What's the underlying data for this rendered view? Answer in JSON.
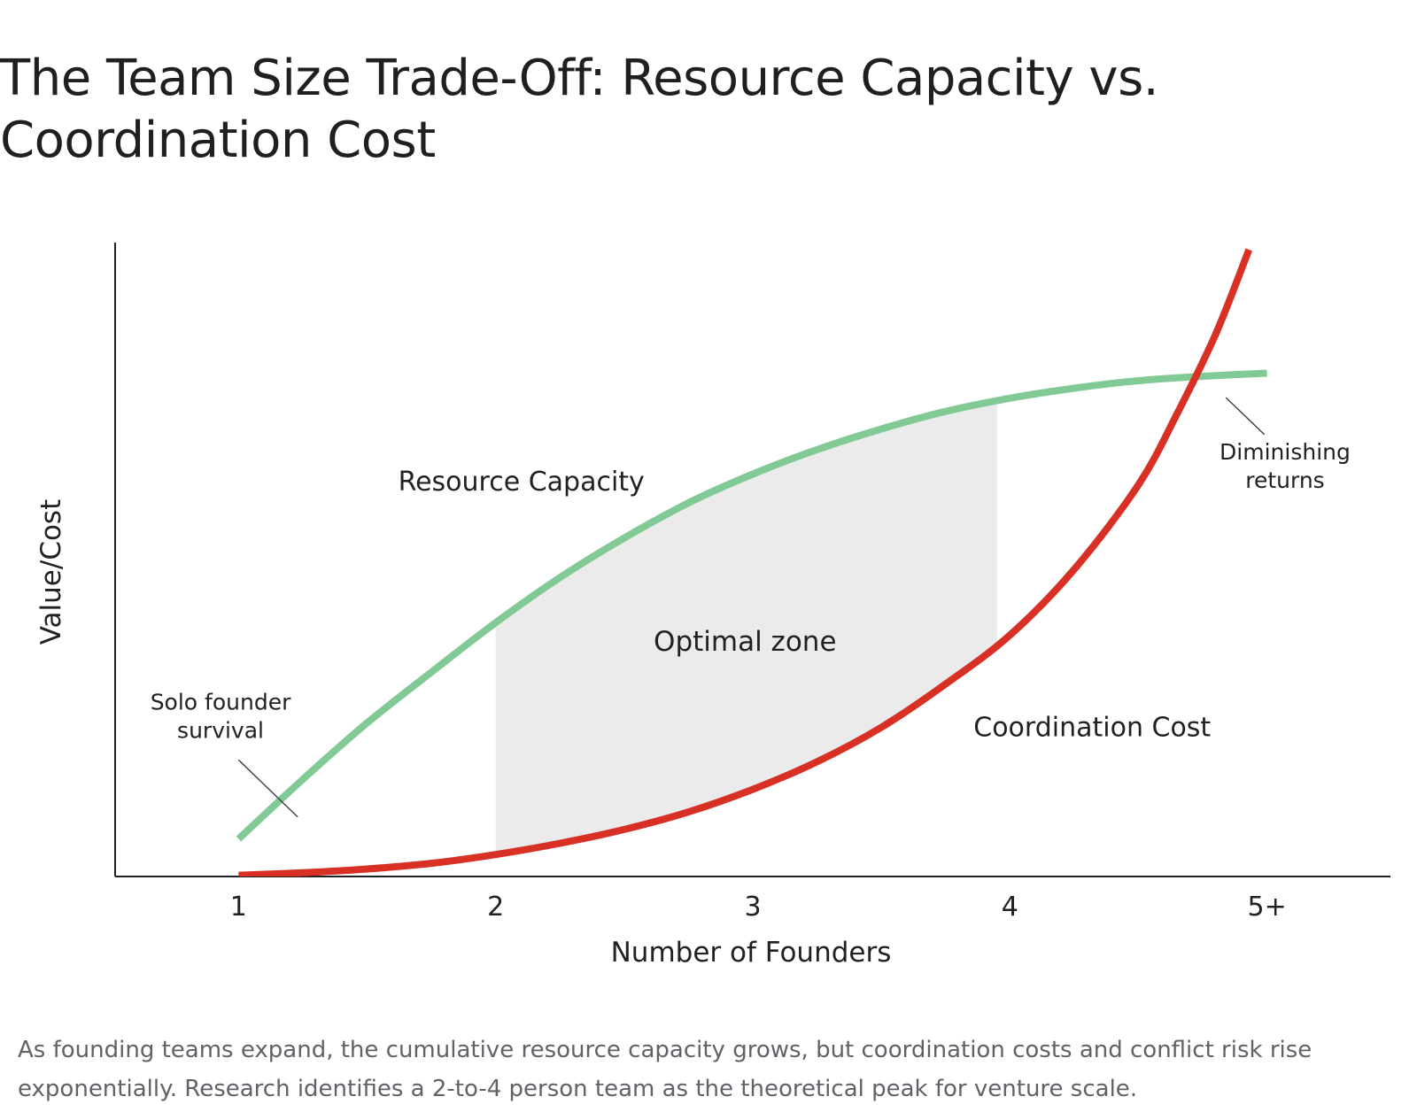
{
  "page": {
    "title": "The Team Size Trade-Off: Resource Capacity vs. Coordination Cost",
    "caption": "As founding teams expand, the cumulative resource capacity grows, but coordination costs and conflict risk rise exponentially. Research identifies a 2-to-4 person team as the theoretical peak for venture scale."
  },
  "chart_data": {
    "type": "line",
    "title": "",
    "xlabel": "Number of Founders",
    "ylabel": "Value/Cost",
    "x_ticks": [
      "1",
      "2",
      "3",
      "4",
      "5+"
    ],
    "xlim": [
      0.52,
      5.48
    ],
    "ylim": [
      0,
      100
    ],
    "y_ticks_shown": false,
    "grid": false,
    "legend": "none",
    "series": [
      {
        "name": "Resource Capacity",
        "color": "#81c995",
        "points": [
          [
            1.0,
            6
          ],
          [
            1.25,
            15.5
          ],
          [
            1.5,
            24.5
          ],
          [
            1.75,
            32.6
          ],
          [
            2.0,
            40.5
          ],
          [
            2.25,
            47.7
          ],
          [
            2.5,
            54
          ],
          [
            2.75,
            59.6
          ],
          [
            3.0,
            64.2
          ],
          [
            3.25,
            68.1
          ],
          [
            3.5,
            71.4
          ],
          [
            3.75,
            74.2
          ],
          [
            4.0,
            76.3
          ],
          [
            4.25,
            77.9
          ],
          [
            4.5,
            79.1
          ],
          [
            4.75,
            79.8
          ],
          [
            5.0,
            80.3
          ]
        ]
      },
      {
        "name": "Coordination Cost",
        "color": "#d93025",
        "points": [
          [
            1.0,
            0.2
          ],
          [
            1.25,
            0.6
          ],
          [
            1.5,
            1.2
          ],
          [
            1.75,
            2.1
          ],
          [
            2.0,
            3.5
          ],
          [
            2.25,
            5.3
          ],
          [
            2.5,
            7.5
          ],
          [
            2.75,
            10.3
          ],
          [
            3.0,
            13.9
          ],
          [
            3.25,
            18.3
          ],
          [
            3.5,
            23.8
          ],
          [
            3.75,
            30.7
          ],
          [
            4.0,
            38.5
          ],
          [
            4.25,
            49
          ],
          [
            4.5,
            62.5
          ],
          [
            4.65,
            73.8
          ],
          [
            4.8,
            86.5
          ],
          [
            4.93,
            100
          ]
        ]
      }
    ],
    "shaded_region": {
      "label": "Optimal zone",
      "x_range": [
        2,
        3.95
      ],
      "color": "#ebebeb"
    },
    "annotations": {
      "solo": {
        "text": [
          "Solo founder",
          "survival"
        ],
        "x": 1.0,
        "y": 6
      },
      "diminishing": {
        "text": [
          "Diminishing",
          "returns"
        ],
        "x": 4.75,
        "y": 80
      }
    }
  }
}
